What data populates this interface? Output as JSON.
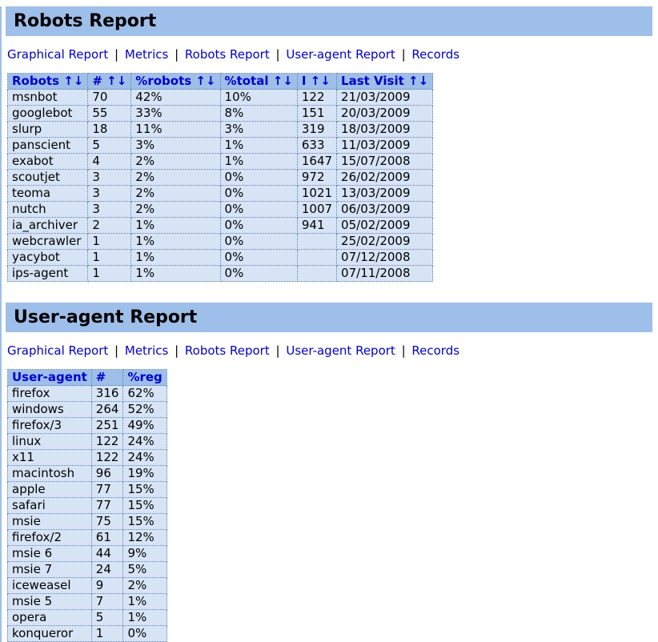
{
  "colors": {
    "header_bg": "#9ebfea",
    "table_bg": "#d7e4f5",
    "link": "#0000cd",
    "border": "#6080b0",
    "body_bg": "#ffffff",
    "text": "#000000",
    "left_border": "#9ebfea"
  },
  "sort_arrows": "↑↓",
  "nav": {
    "items": [
      "Graphical Report",
      "Metrics",
      "Robots Report",
      "User-agent Report",
      "Records"
    ],
    "separator": "|"
  },
  "robots_section": {
    "title": "Robots Report",
    "columns": [
      "Robots",
      "#",
      "%robots",
      "%total",
      "I",
      "Last Visit"
    ],
    "sortable": [
      true,
      true,
      true,
      true,
      true,
      true
    ],
    "rows": [
      [
        "msnbot",
        "70",
        "42%",
        "10%",
        "122",
        "21/03/2009"
      ],
      [
        "googlebot",
        "55",
        "33%",
        "8%",
        "151",
        "20/03/2009"
      ],
      [
        "slurp",
        "18",
        "11%",
        "3%",
        "319",
        "18/03/2009"
      ],
      [
        "panscient",
        "5",
        "3%",
        "1%",
        "633",
        "11/03/2009"
      ],
      [
        "exabot",
        "4",
        "2%",
        "1%",
        "1647",
        "15/07/2008"
      ],
      [
        "scoutjet",
        "3",
        "2%",
        "0%",
        "972",
        "26/02/2009"
      ],
      [
        "teoma",
        "3",
        "2%",
        "0%",
        "1021",
        "13/03/2009"
      ],
      [
        "nutch",
        "3",
        "2%",
        "0%",
        "1007",
        "06/03/2009"
      ],
      [
        "ia_archiver",
        "2",
        "1%",
        "0%",
        "941",
        "05/02/2009"
      ],
      [
        "webcrawler",
        "1",
        "1%",
        "0%",
        "",
        "25/02/2009"
      ],
      [
        "yacybot",
        "1",
        "1%",
        "0%",
        "",
        "07/12/2008"
      ],
      [
        "ips-agent",
        "1",
        "1%",
        "0%",
        "",
        "07/11/2008"
      ]
    ]
  },
  "useragent_section": {
    "title": "User-agent Report",
    "columns": [
      "User-agent",
      "#",
      "%reg"
    ],
    "sortable": [
      false,
      false,
      false
    ],
    "rows": [
      [
        "firefox",
        "316",
        "62%"
      ],
      [
        "windows",
        "264",
        "52%"
      ],
      [
        "firefox/3",
        "251",
        "49%"
      ],
      [
        "linux",
        "122",
        "24%"
      ],
      [
        "x11",
        "122",
        "24%"
      ],
      [
        "macintosh",
        "96",
        "19%"
      ],
      [
        "apple",
        "77",
        "15%"
      ],
      [
        "safari",
        "77",
        "15%"
      ],
      [
        "msie",
        "75",
        "15%"
      ],
      [
        "firefox/2",
        "61",
        "12%"
      ],
      [
        "msie 6",
        "44",
        "9%"
      ],
      [
        "msie 7",
        "24",
        "5%"
      ],
      [
        "iceweasel",
        "9",
        "2%"
      ],
      [
        "msie 5",
        "7",
        "1%"
      ],
      [
        "opera",
        "5",
        "1%"
      ],
      [
        "konqueror",
        "1",
        "0%"
      ]
    ]
  }
}
